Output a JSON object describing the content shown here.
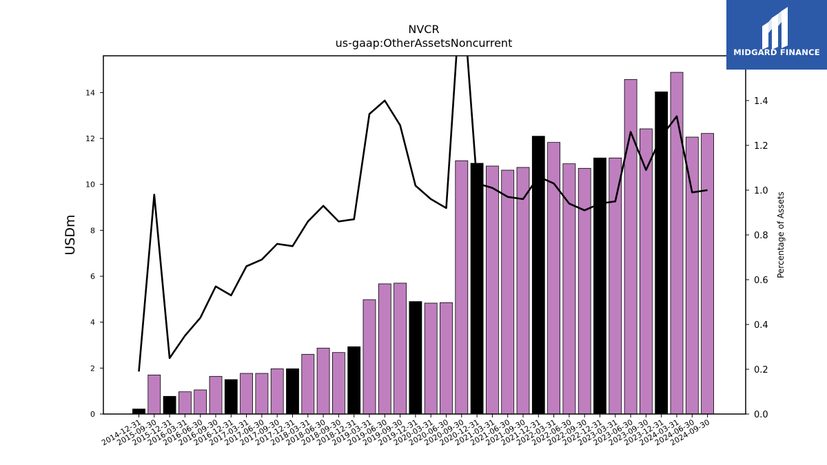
{
  "chart_data": {
    "type": "bar",
    "title": "NVCR",
    "subtitle": "us-gaap:OtherAssetsNoncurrent",
    "ylabel": "USDm",
    "y2label": "Percentage of Assets",
    "ylim": [
      0,
      15.6
    ],
    "y2lim": [
      0,
      1.6
    ],
    "yticks": [
      0,
      2,
      4,
      6,
      8,
      10,
      12,
      14
    ],
    "y2ticks": [
      0.0,
      0.2,
      0.4,
      0.6,
      0.8,
      1.0,
      1.2,
      1.4
    ],
    "y2ticklabels": [
      "0.0",
      "0.2",
      "0.4",
      "0.6",
      "0.8",
      "1.0",
      "1.2",
      "1.4"
    ],
    "grid": false,
    "colors": {
      "annual": "#000000",
      "quarterly": "#bf7fbf",
      "line": "#000000"
    },
    "categories": [
      "2014-12-31",
      "2015-09-30",
      "2015-12-31",
      "2016-03-31",
      "2016-06-30",
      "2016-09-30",
      "2016-12-31",
      "2017-03-31",
      "2017-06-30",
      "2017-09-30",
      "2017-12-31",
      "2018-03-31",
      "2018-06-30",
      "2018-09-30",
      "2018-12-31",
      "2019-03-31",
      "2019-06-30",
      "2019-09-30",
      "2019-12-31",
      "2020-03-31",
      "2020-06-30",
      "2020-09-30",
      "2020-12-31",
      "2021-03-31",
      "2021-06-30",
      "2021-09-30",
      "2021-12-31",
      "2022-03-31",
      "2022-06-30",
      "2022-09-30",
      "2022-12-31",
      "2023-03-31",
      "2023-06-30",
      "2023-09-30",
      "2023-12-31",
      "2024-03-31",
      "2024-06-30",
      "2024-09-30"
    ],
    "series": [
      {
        "type": "bar",
        "values": [
          0.22,
          1.7,
          0.77,
          0.97,
          1.05,
          1.64,
          1.5,
          1.77,
          1.77,
          1.97,
          1.97,
          2.6,
          2.87,
          2.68,
          2.93,
          4.98,
          5.67,
          5.7,
          4.9,
          4.83,
          4.85,
          11.03,
          10.92,
          10.8,
          10.62,
          10.74,
          12.1,
          11.83,
          10.9,
          10.7,
          11.15,
          11.15,
          14.57,
          12.42,
          14.03,
          14.88,
          12.06,
          12.22
        ],
        "annual": [
          true,
          false,
          true,
          false,
          false,
          false,
          true,
          false,
          false,
          false,
          true,
          false,
          false,
          false,
          true,
          false,
          false,
          false,
          true,
          false,
          false,
          false,
          true,
          false,
          false,
          false,
          true,
          false,
          false,
          false,
          true,
          false,
          false,
          false,
          true,
          false,
          false,
          false
        ]
      },
      {
        "type": "line",
        "axis": "right",
        "values": [
          0.19,
          0.98,
          0.25,
          0.35,
          0.43,
          0.57,
          0.53,
          0.66,
          0.69,
          0.76,
          0.75,
          0.86,
          0.93,
          0.86,
          0.87,
          1.34,
          1.4,
          1.29,
          1.02,
          0.96,
          0.92,
          1.95,
          1.03,
          1.01,
          0.97,
          0.96,
          1.06,
          1.03,
          0.94,
          0.91,
          0.94,
          0.95,
          1.26,
          1.09,
          1.24,
          1.33,
          0.99,
          1.0
        ]
      }
    ]
  },
  "logo": {
    "brand": "MIDGARD FINANCE"
  }
}
